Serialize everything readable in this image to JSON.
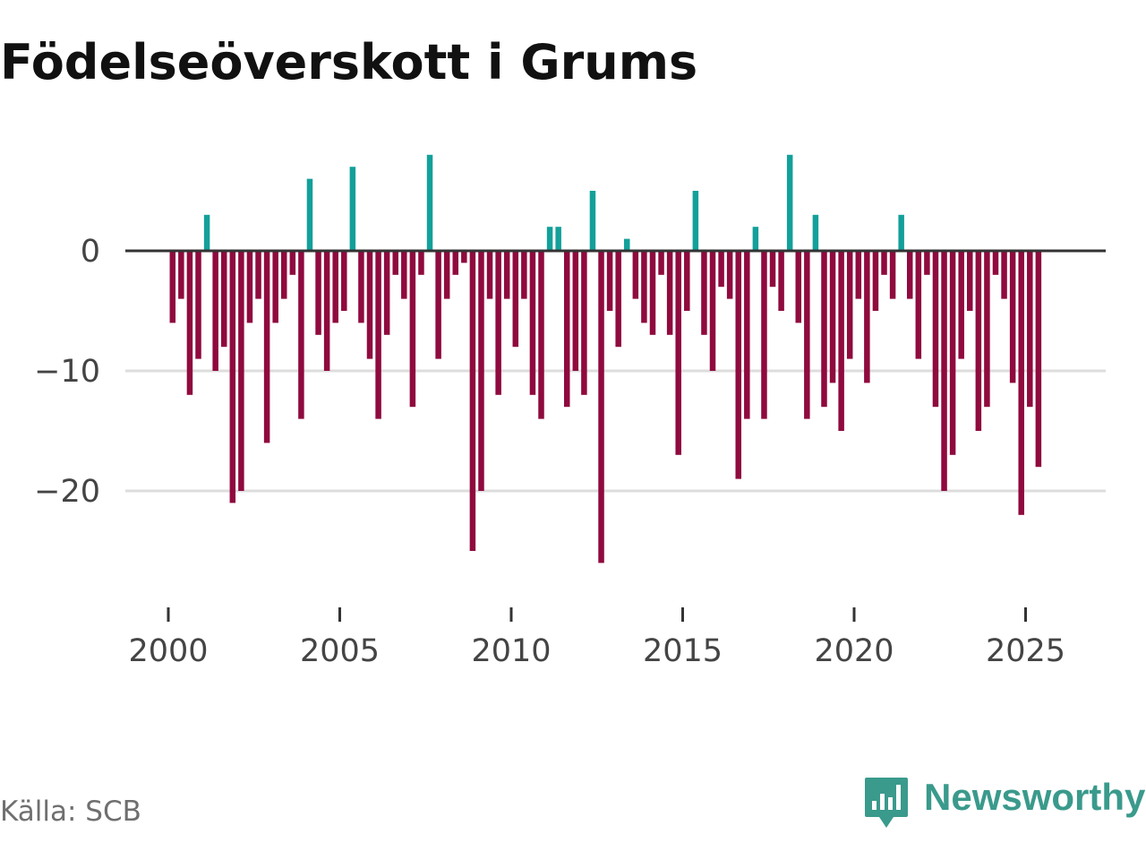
{
  "chart_data": {
    "type": "bar",
    "title": "Födelseöverskott i Grums",
    "source": "Källa: SCB",
    "brand": "Newsworthy",
    "xlabel": "",
    "ylabel": "",
    "ylim": [
      -29,
      9
    ],
    "xlim": [
      1999,
      2027.3
    ],
    "yticks": [
      0,
      -10,
      -20
    ],
    "ytick_labels": [
      "0",
      "−10",
      "−20"
    ],
    "xticks": [
      2000,
      2005,
      2010,
      2015,
      2020,
      2025
    ],
    "xtick_labels": [
      "2000",
      "2005",
      "2010",
      "2015",
      "2020",
      "2025"
    ],
    "colors": {
      "positive": "#13a09a",
      "negative": "#8f0a3e",
      "zero_line": "#333333",
      "grid": "#dddddd",
      "brand": "#3a9a8c"
    },
    "frequency": "quarterly",
    "start": 2000.0,
    "values": [
      -6,
      -4,
      -12,
      -9,
      3,
      -10,
      -8,
      -21,
      -20,
      -6,
      -4,
      -16,
      -6,
      -4,
      -2,
      -14,
      6,
      -7,
      -10,
      -6,
      -5,
      7,
      -6,
      -9,
      -14,
      -7,
      -2,
      -4,
      -13,
      -2,
      8,
      -9,
      -4,
      -2,
      -1,
      -25,
      -20,
      -4,
      -12,
      -4,
      -8,
      -4,
      -12,
      -14,
      2,
      2,
      -13,
      -10,
      -12,
      5,
      -26,
      -5,
      -8,
      1,
      -4,
      -6,
      -7,
      -2,
      -7,
      -17,
      -5,
      5,
      -7,
      -10,
      -3,
      -4,
      -19,
      -14,
      2,
      -14,
      -3,
      -5,
      8,
      -6,
      -14,
      3,
      -13,
      -11,
      -15,
      -9,
      -4,
      -11,
      -5,
      -2,
      -4,
      3,
      -4,
      -9,
      -2,
      -13,
      -20,
      -17,
      -9,
      -5,
      -15,
      -13,
      -2,
      -4,
      -11,
      -22,
      -13,
      -18
    ]
  }
}
